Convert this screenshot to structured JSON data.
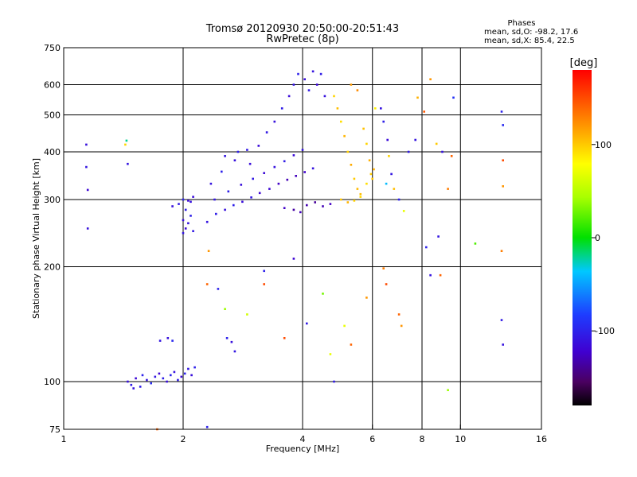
{
  "chart_data": {
    "type": "scatter",
    "title": "Tromsø 20120930 20:50:00-20:51:43",
    "subtitle": "RwPretec (8p)",
    "xlabel": "Frequency [MHz]",
    "ylabel": "Stationary phase Virtual Height [km]",
    "x_scale": "log",
    "y_scale": "log",
    "xlim": [
      1,
      16
    ],
    "ylim": [
      75,
      750
    ],
    "x_ticks": [
      1,
      2,
      4,
      6,
      8,
      10,
      16
    ],
    "x_tick_labels": [
      "1",
      "2",
      "4",
      "6",
      "8",
      "10",
      "16"
    ],
    "y_ticks": [
      75,
      100,
      200,
      300,
      400,
      500,
      600,
      750
    ],
    "y_tick_labels": [
      "75",
      "100",
      "200",
      "300",
      "400",
      "500",
      "600",
      "750"
    ],
    "grid": true,
    "colorbar": {
      "label": "[deg]",
      "range": [
        -180,
        180
      ],
      "ticks": [
        -100,
        0,
        100
      ],
      "tick_labels": [
        "-100",
        "0",
        "100"
      ]
    },
    "stats": {
      "heading": "Phases",
      "line_o": "mean, sd,O: -98.2, 17.6",
      "line_x": "mean, sd,X: 85.4, 22.5"
    },
    "series": [
      {
        "columns": [
          "freq_MHz",
          "height_km",
          "phase_deg"
        ],
        "points": [
          [
            1.45,
            100,
            -112
          ],
          [
            1.48,
            98,
            -105
          ],
          [
            1.52,
            102,
            -118
          ],
          [
            1.58,
            104,
            -100
          ],
          [
            1.62,
            101,
            -110
          ],
          [
            1.66,
            99,
            -95
          ],
          [
            1.7,
            103,
            -108
          ],
          [
            1.74,
            105,
            -120
          ],
          [
            1.78,
            102,
            -102
          ],
          [
            1.82,
            100,
            -114
          ],
          [
            1.86,
            104,
            -98
          ],
          [
            1.9,
            106,
            -111
          ],
          [
            1.94,
            101,
            -104
          ],
          [
            1.98,
            103,
            -116
          ],
          [
            2.02,
            105,
            -99
          ],
          [
            2.06,
            108,
            -107
          ],
          [
            2.1,
            104,
            -113
          ],
          [
            2.14,
            109,
            -101
          ],
          [
            1.5,
            96,
            -109
          ],
          [
            1.56,
            97,
            -103
          ],
          [
            1.75,
            128,
            -108
          ],
          [
            1.83,
            130,
            -112
          ],
          [
            1.88,
            128,
            -96
          ],
          [
            1.88,
            288,
            -112
          ],
          [
            1.95,
            292,
            -105
          ],
          [
            2.0,
            245,
            -108
          ],
          [
            2.0,
            265,
            -114
          ],
          [
            2.0,
            300,
            -100
          ],
          [
            2.03,
            252,
            -117
          ],
          [
            2.03,
            282,
            -103
          ],
          [
            2.06,
            260,
            -110
          ],
          [
            2.06,
            298,
            -118
          ],
          [
            2.09,
            272,
            -102
          ],
          [
            2.09,
            296,
            -111
          ],
          [
            2.12,
            248,
            -106
          ],
          [
            2.12,
            305,
            -115
          ],
          [
            2.3,
            262,
            -109
          ],
          [
            2.42,
            275,
            -103
          ],
          [
            2.55,
            282,
            -112
          ],
          [
            2.68,
            290,
            -101
          ],
          [
            2.82,
            296,
            -114
          ],
          [
            2.97,
            304,
            -107
          ],
          [
            3.12,
            312,
            -120
          ],
          [
            3.3,
            320,
            -118
          ],
          [
            3.48,
            330,
            -125
          ],
          [
            3.66,
            338,
            -130
          ],
          [
            3.85,
            346,
            -128
          ],
          [
            4.05,
            354,
            -122
          ],
          [
            4.25,
            362,
            -110
          ],
          [
            2.4,
            300,
            -108
          ],
          [
            2.6,
            315,
            -102
          ],
          [
            2.8,
            328,
            -113
          ],
          [
            3.0,
            340,
            -106
          ],
          [
            3.2,
            352,
            -117
          ],
          [
            3.4,
            365,
            -111
          ],
          [
            3.6,
            378,
            -104
          ],
          [
            3.8,
            392,
            -115
          ],
          [
            4.0,
            405,
            -109
          ],
          [
            2.35,
            330,
            -110
          ],
          [
            2.5,
            355,
            -100
          ],
          [
            2.7,
            380,
            -112
          ],
          [
            2.9,
            405,
            -105
          ],
          [
            3.1,
            415,
            -115
          ],
          [
            2.55,
            390,
            -108
          ],
          [
            2.75,
            400,
            -102
          ],
          [
            2.95,
            372,
            -114
          ],
          [
            3.25,
            450,
            -106
          ],
          [
            3.4,
            480,
            -112
          ],
          [
            3.55,
            520,
            -103
          ],
          [
            3.7,
            560,
            -115
          ],
          [
            3.8,
            600,
            -109
          ],
          [
            3.9,
            640,
            -101
          ],
          [
            4.05,
            620,
            -113
          ],
          [
            4.15,
            580,
            -105
          ],
          [
            4.25,
            650,
            -110
          ],
          [
            4.35,
            600,
            -117
          ],
          [
            4.45,
            640,
            -104
          ],
          [
            4.55,
            560,
            -111
          ],
          [
            3.6,
            285,
            -125
          ],
          [
            3.8,
            282,
            -135
          ],
          [
            3.95,
            278,
            -128
          ],
          [
            4.1,
            290,
            -132
          ],
          [
            4.3,
            295,
            -138
          ],
          [
            4.5,
            288,
            -130
          ],
          [
            4.7,
            292,
            -126
          ],
          [
            4.8,
            560,
            96
          ],
          [
            4.9,
            520,
            104
          ],
          [
            5.0,
            480,
            92
          ],
          [
            5.1,
            440,
            108
          ],
          [
            5.2,
            400,
            98
          ],
          [
            5.3,
            370,
            112
          ],
          [
            5.4,
            340,
            100
          ],
          [
            5.5,
            320,
            106
          ],
          [
            5.6,
            305,
            94
          ],
          [
            5.7,
            460,
            103
          ],
          [
            5.8,
            420,
            96
          ],
          [
            5.9,
            380,
            110
          ],
          [
            5.95,
            350,
            99
          ],
          [
            5.0,
            300,
            102
          ],
          [
            5.2,
            295,
            108
          ],
          [
            5.4,
            298,
            97
          ],
          [
            5.6,
            310,
            105
          ],
          [
            5.8,
            330,
            92
          ],
          [
            6.0,
            340,
            101
          ],
          [
            6.05,
            360,
            110
          ],
          [
            5.3,
            600,
            118
          ],
          [
            5.5,
            580,
            124
          ],
          [
            6.1,
            520,
            84
          ],
          [
            6.3,
            520,
            -110
          ],
          [
            6.4,
            480,
            -102
          ],
          [
            6.55,
            430,
            -115
          ],
          [
            6.6,
            390,
            96
          ],
          [
            6.7,
            350,
            -108
          ],
          [
            6.8,
            320,
            104
          ],
          [
            6.5,
            330,
            -40
          ],
          [
            7.0,
            300,
            -100
          ],
          [
            7.2,
            280,
            70
          ],
          [
            1.14,
            418,
            -112
          ],
          [
            1.14,
            365,
            -108
          ],
          [
            1.15,
            318,
            -118
          ],
          [
            1.15,
            252,
            -112
          ],
          [
            1.43,
            418,
            95
          ],
          [
            1.45,
            372,
            -108
          ],
          [
            1.44,
            428,
            -20
          ],
          [
            1.72,
            75,
            140
          ],
          [
            2.3,
            76,
            -100
          ],
          [
            2.32,
            220,
            120
          ],
          [
            2.3,
            180,
            140
          ],
          [
            2.45,
            175,
            -100
          ],
          [
            2.55,
            155,
            40
          ],
          [
            2.58,
            130,
            -100
          ],
          [
            2.65,
            127,
            -112
          ],
          [
            2.7,
            120,
            -107
          ],
          [
            2.9,
            150,
            60
          ],
          [
            3.2,
            195,
            -100
          ],
          [
            3.2,
            180,
            150
          ],
          [
            3.6,
            130,
            150
          ],
          [
            3.8,
            210,
            -120
          ],
          [
            4.1,
            142,
            -105
          ],
          [
            4.5,
            170,
            30
          ],
          [
            4.7,
            118,
            70
          ],
          [
            4.8,
            100,
            -105
          ],
          [
            5.1,
            140,
            70
          ],
          [
            5.3,
            125,
            140
          ],
          [
            5.8,
            166,
            120
          ],
          [
            6.4,
            198,
            130
          ],
          [
            6.5,
            180,
            150
          ],
          [
            7.0,
            150,
            140
          ],
          [
            7.1,
            140,
            120
          ],
          [
            8.2,
            225,
            -100
          ],
          [
            8.4,
            190,
            -110
          ],
          [
            8.8,
            240,
            -108
          ],
          [
            8.9,
            190,
            140
          ],
          [
            9.3,
            95,
            40
          ],
          [
            9.5,
            390,
            140
          ],
          [
            9.3,
            320,
            130
          ],
          [
            10.9,
            230,
            20
          ],
          [
            12.7,
            145,
            -105
          ],
          [
            12.8,
            125,
            -110
          ],
          [
            12.7,
            220,
            130
          ],
          [
            9.6,
            555,
            -90
          ],
          [
            7.8,
            555,
            110
          ],
          [
            8.1,
            510,
            145
          ],
          [
            12.7,
            510,
            -100
          ],
          [
            12.8,
            470,
            -95
          ],
          [
            12.8,
            380,
            150
          ],
          [
            12.8,
            325,
            120
          ],
          [
            9.0,
            400,
            -110
          ],
          [
            8.7,
            420,
            100
          ],
          [
            7.4,
            400,
            -105
          ],
          [
            7.7,
            430,
            -110
          ],
          [
            8.4,
            620,
            120
          ]
        ]
      }
    ]
  }
}
